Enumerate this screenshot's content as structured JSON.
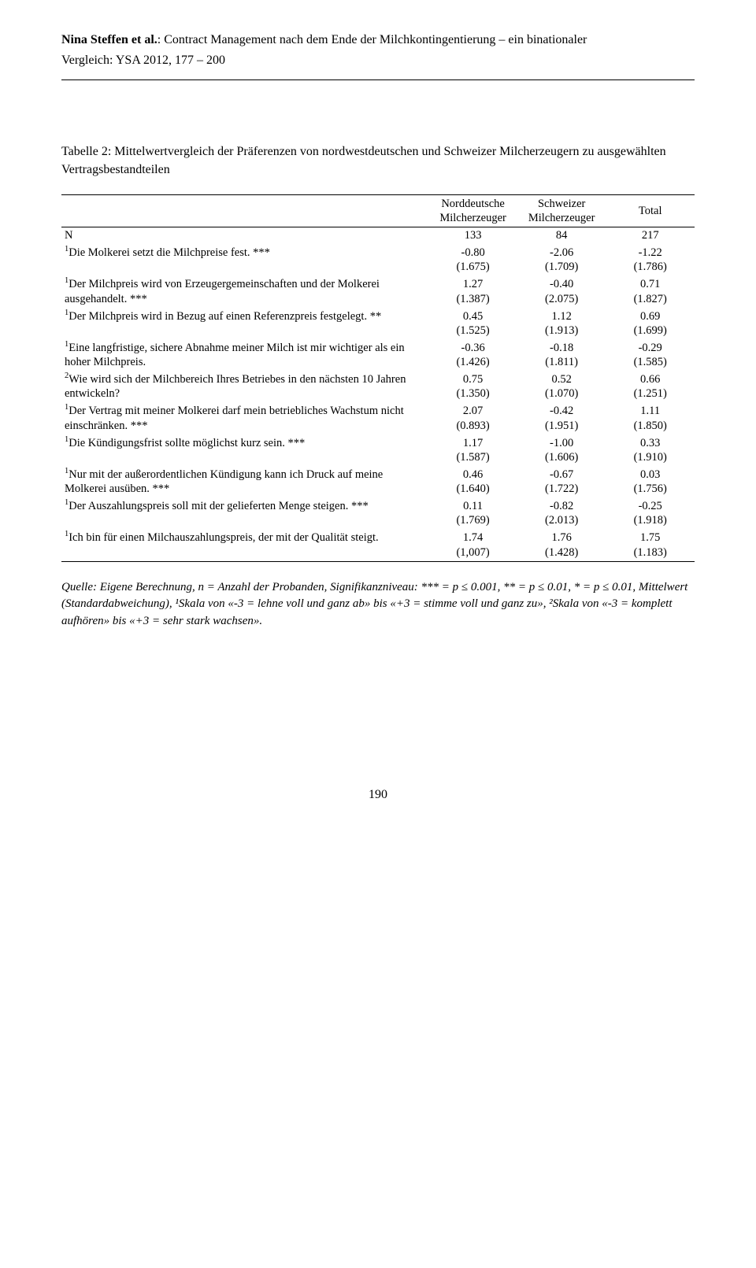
{
  "header": {
    "authors": "Nina Steffen et al.",
    "title_rest": ": Contract Management nach dem Ende der Milchkontingentierung – ein binationaler",
    "line2": "Vergleich: YSA 2012, 177 – 200"
  },
  "table": {
    "caption": "Tabelle 2: Mittelwertvergleich der Präferenzen von nordwestdeutschen und Schweizer Milcherzeugern zu ausgewählten Vertragsbestandteilen",
    "col_headers": {
      "label": "",
      "c1_l1": "Norddeutsche",
      "c1_l2": "Milcherzeuger",
      "c2_l1": "Schweizer",
      "c2_l2": "Milcherzeuger",
      "c3": "Total"
    },
    "n_row": {
      "label": "N",
      "c1": "133",
      "c2": "84",
      "c3": "217"
    },
    "rows": [
      {
        "sup": "1",
        "label": "Die Molkerei setzt die Milchpreise fest. ***",
        "c1a": "-0.80",
        "c1b": "(1.675)",
        "c2a": "-2.06",
        "c2b": "(1.709)",
        "c3a": "-1.22",
        "c3b": "(1.786)"
      },
      {
        "sup": "1",
        "label": "Der Milchpreis wird von Erzeugergemeinschaften und der Molkerei ausgehandelt. ***",
        "c1a": "1.27",
        "c1b": "(1.387)",
        "c2a": "-0.40",
        "c2b": "(2.075)",
        "c3a": "0.71",
        "c3b": "(1.827)"
      },
      {
        "sup": "1",
        "label": "Der Milchpreis wird in Bezug auf einen Referenzpreis festgelegt. **",
        "c1a": "0.45",
        "c1b": "(1.525)",
        "c2a": "1.12",
        "c2b": "(1.913)",
        "c3a": "0.69",
        "c3b": "(1.699)"
      },
      {
        "sup": "1",
        "label": "Eine langfristige, sichere Abnahme meiner Milch ist mir wichtiger als ein hoher Milchpreis.",
        "c1a": "-0.36",
        "c1b": "(1.426)",
        "c2a": "-0.18",
        "c2b": "(1.811)",
        "c3a": "-0.29",
        "c3b": "(1.585)"
      },
      {
        "sup": "2",
        "label": "Wie wird sich der Milchbereich Ihres Betriebes in den nächsten 10 Jahren entwickeln?",
        "c1a": "0.75",
        "c1b": "(1.350)",
        "c2a": "0.52",
        "c2b": "(1.070)",
        "c3a": "0.66",
        "c3b": "(1.251)"
      },
      {
        "sup": "1",
        "label": "Der Vertrag mit meiner Molkerei darf mein betriebliches Wachstum nicht einschränken. ***",
        "c1a": "2.07",
        "c1b": "(0.893)",
        "c2a": "-0.42",
        "c2b": "(1.951)",
        "c3a": "1.11",
        "c3b": "(1.850)"
      },
      {
        "sup": "1",
        "label": "Die Kündigungsfrist sollte möglichst kurz sein. ***",
        "c1a": "1.17",
        "c1b": "(1.587)",
        "c2a": "-1.00",
        "c2b": "(1.606)",
        "c3a": "0.33",
        "c3b": "(1.910)"
      },
      {
        "sup": "1",
        "label": "Nur mit der außerordentlichen Kündigung kann ich Druck auf meine Molkerei ausüben. ***",
        "c1a": "0.46",
        "c1b": "(1.640)",
        "c2a": "-0.67",
        "c2b": "(1.722)",
        "c3a": "0.03",
        "c3b": "(1.756)"
      },
      {
        "sup": "1",
        "label": "Der Auszahlungspreis soll mit der gelieferten Menge steigen. ***",
        "c1a": "0.11",
        "c1b": "(1.769)",
        "c2a": "-0.82",
        "c2b": "(2.013)",
        "c3a": "-0.25",
        "c3b": "(1.918)"
      },
      {
        "sup": "1",
        "label": "Ich bin für einen Milchauszahlungspreis, der mit der Qualität steigt.",
        "c1a": "1.74",
        "c1b": "(1,007)",
        "c2a": "1.76",
        "c2b": "(1.428)",
        "c3a": "1.75",
        "c3b": "(1.183)"
      }
    ]
  },
  "source": "Quelle: Eigene Berechnung, n = Anzahl der Probanden, Signifikanzniveau: *** = p ≤ 0.001, ** = p ≤ 0.01, * = p ≤ 0.01, Mittelwert (Standardabweichung), ¹Skala von «-3 = lehne voll und ganz ab» bis «+3 = stimme voll und ganz zu», ²Skala von «-3 = komplett aufhören» bis «+3 = sehr stark wachsen».",
  "page_number": "190"
}
